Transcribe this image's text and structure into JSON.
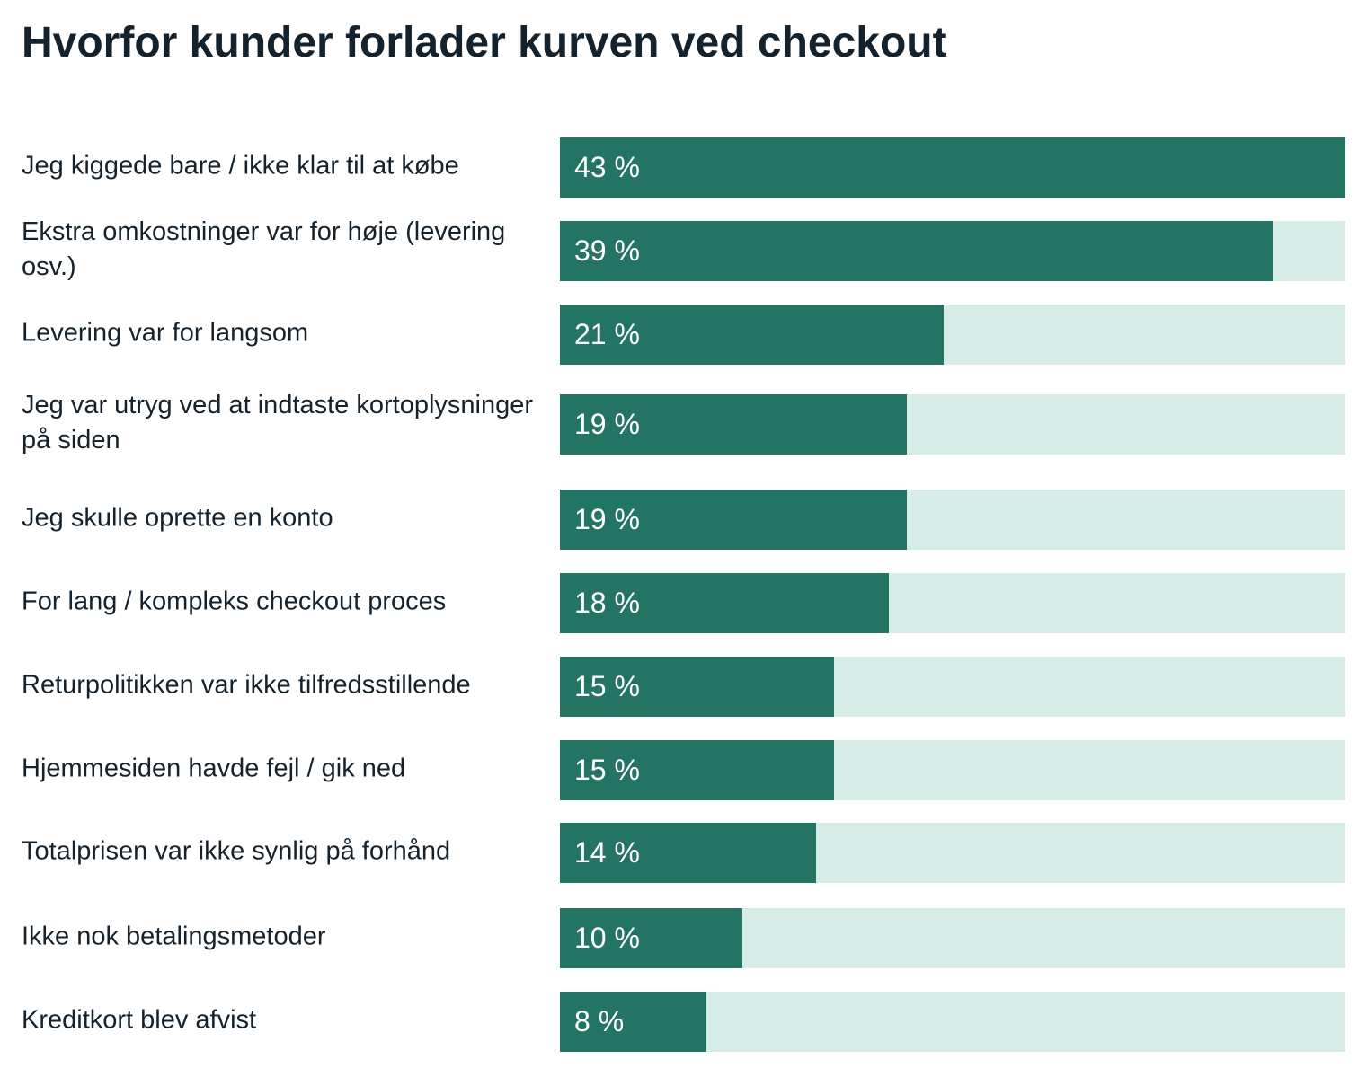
{
  "title": "Hvorfor kunder forlader kurven ved checkout",
  "colors": {
    "bar": "#247463",
    "track": "#d6ede7",
    "text": "#16222b"
  },
  "chart_data": {
    "type": "bar",
    "orientation": "horizontal",
    "title": "Hvorfor kunder forlader kurven ved checkout",
    "categories": [
      "Jeg kiggede bare / ikke klar til at købe",
      "Ekstra omkostninger var for høje (levering osv.)",
      "Levering var for langsom",
      "Jeg var utryg ved at indtaste kortoplysninger på siden",
      "Jeg skulle oprette en konto",
      "For lang / kompleks checkout proces",
      "Returpolitikken var ikke tilfredsstillende",
      "Hjemmesiden havde fejl / gik ned",
      "Totalprisen var ikke synlig på forhånd",
      "Ikke nok betalingsmetoder",
      "Kreditkort blev afvist"
    ],
    "values": [
      43,
      39,
      21,
      19,
      19,
      18,
      15,
      15,
      14,
      10,
      8
    ],
    "value_labels": [
      "43 %",
      "39 %",
      "21 %",
      "19 %",
      "19 %",
      "18 %",
      "15 %",
      "15 %",
      "14 %",
      "10 %",
      "8 %"
    ],
    "unit": "%",
    "xlim": [
      0,
      43
    ],
    "grid": false,
    "legend": "none"
  }
}
